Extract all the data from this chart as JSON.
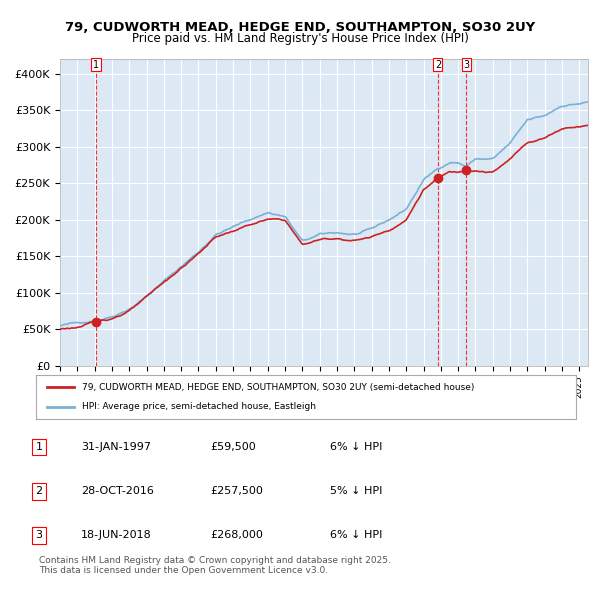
{
  "title1": "79, CUDWORTH MEAD, HEDGE END, SOUTHAMPTON, SO30 2UY",
  "title2": "Price paid vs. HM Land Registry's House Price Index (HPI)",
  "background_color": "#dce9f5",
  "plot_bg_color": "#dce9f5",
  "red_line_label": "79, CUDWORTH MEAD, HEDGE END, SOUTHAMPTON, SO30 2UY (semi-detached house)",
  "blue_line_label": "HPI: Average price, semi-detached house, Eastleigh",
  "footer": "Contains HM Land Registry data © Crown copyright and database right 2025.\nThis data is licensed under the Open Government Licence v3.0.",
  "purchases": [
    {
      "num": 1,
      "date": "31-JAN-1997",
      "price": 59500,
      "year": 1997.08,
      "pct": "6%",
      "dir": "↓"
    },
    {
      "num": 2,
      "date": "28-OCT-2016",
      "price": 257500,
      "year": 2016.83,
      "pct": "5%",
      "dir": "↓"
    },
    {
      "num": 3,
      "date": "18-JUN-2018",
      "price": 268000,
      "year": 2018.46,
      "pct": "6%",
      "dir": "↓"
    }
  ],
  "ylim": [
    0,
    420000
  ],
  "xlim_start": 1995.0,
  "xlim_end": 2025.5
}
